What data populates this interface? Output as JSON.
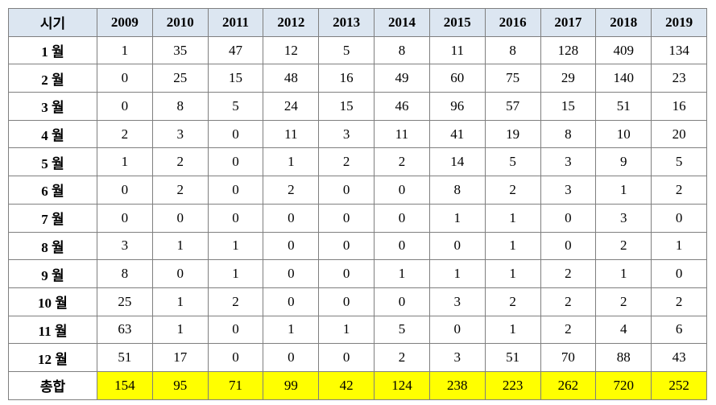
{
  "table": {
    "header": [
      "시기",
      "2009",
      "2010",
      "2011",
      "2012",
      "2013",
      "2014",
      "2015",
      "2016",
      "2017",
      "2018",
      "2019"
    ],
    "rows": [
      [
        "1 월",
        1,
        35,
        47,
        12,
        5,
        8,
        11,
        8,
        128,
        409,
        134
      ],
      [
        "2 월",
        0,
        25,
        15,
        48,
        16,
        49,
        60,
        75,
        29,
        140,
        23
      ],
      [
        "3 월",
        0,
        8,
        5,
        24,
        15,
        46,
        96,
        57,
        15,
        51,
        16
      ],
      [
        "4 월",
        2,
        3,
        0,
        11,
        3,
        11,
        41,
        19,
        8,
        10,
        20
      ],
      [
        "5 월",
        1,
        2,
        0,
        1,
        2,
        2,
        14,
        5,
        3,
        9,
        5
      ],
      [
        "6 월",
        0,
        2,
        0,
        2,
        0,
        0,
        8,
        2,
        3,
        1,
        2
      ],
      [
        "7 월",
        0,
        0,
        0,
        0,
        0,
        0,
        1,
        1,
        0,
        3,
        0
      ],
      [
        "8 월",
        3,
        1,
        1,
        0,
        0,
        0,
        0,
        1,
        0,
        2,
        1
      ],
      [
        "9 월",
        8,
        0,
        1,
        0,
        0,
        1,
        1,
        1,
        2,
        1,
        0
      ],
      [
        "10 월",
        25,
        1,
        2,
        0,
        0,
        0,
        3,
        2,
        2,
        2,
        2
      ],
      [
        "11 월",
        63,
        1,
        0,
        1,
        1,
        5,
        0,
        1,
        2,
        4,
        6
      ],
      [
        "12 월",
        51,
        17,
        0,
        0,
        0,
        2,
        3,
        51,
        70,
        88,
        43
      ],
      [
        "총합",
        154,
        95,
        71,
        99,
        42,
        124,
        238,
        223,
        262,
        720,
        252
      ]
    ]
  }
}
